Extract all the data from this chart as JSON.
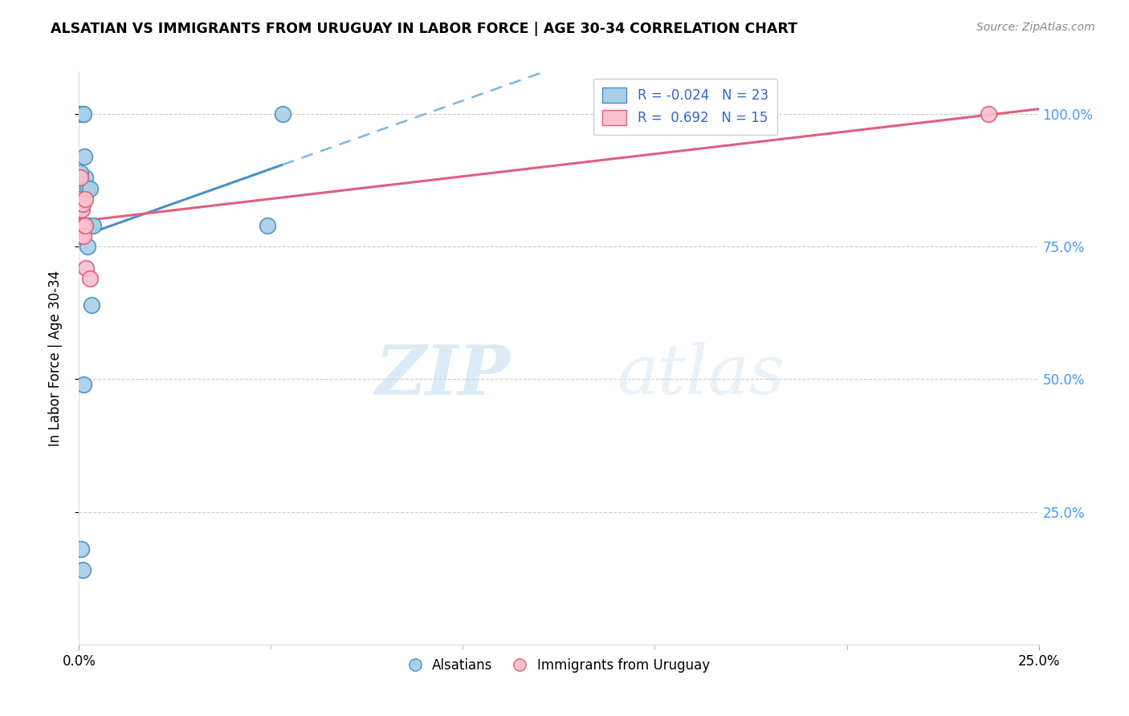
{
  "title": "ALSATIAN VS IMMIGRANTS FROM URUGUAY IN LABOR FORCE | AGE 30-34 CORRELATION CHART",
  "source": "Source: ZipAtlas.com",
  "ylabel": "In Labor Force | Age 30-34",
  "xlim": [
    0.0,
    0.25
  ],
  "ylim": [
    0.0,
    1.08
  ],
  "alsatians_x": [
    0.0002,
    0.001,
    0.0011,
    0.0014,
    0.0016,
    0.0003,
    0.0003,
    0.0004,
    0.0004,
    0.0005,
    0.0006,
    0.0016,
    0.0022,
    0.0022,
    0.0028,
    0.0026,
    0.0032,
    0.0036,
    0.0005,
    0.0009,
    0.0012,
    0.049,
    0.053
  ],
  "alsatians_y": [
    1.0,
    1.0,
    1.0,
    0.92,
    0.88,
    0.89,
    0.87,
    0.86,
    0.84,
    0.82,
    0.77,
    0.86,
    0.86,
    0.75,
    0.86,
    0.79,
    0.64,
    0.79,
    0.18,
    0.14,
    0.49,
    0.79,
    1.0
  ],
  "uruguay_x": [
    0.0003,
    0.0003,
    0.0004,
    0.0004,
    0.0005,
    0.0007,
    0.0008,
    0.001,
    0.0011,
    0.0012,
    0.0015,
    0.0015,
    0.0018,
    0.0028,
    0.237
  ],
  "uruguay_y": [
    0.88,
    0.84,
    0.83,
    0.79,
    0.77,
    0.83,
    0.82,
    0.83,
    0.79,
    0.77,
    0.84,
    0.79,
    0.71,
    0.69,
    1.0
  ],
  "alsatian_R": -0.024,
  "alsatian_N": 23,
  "uruguay_R": 0.692,
  "uruguay_N": 15,
  "alsatian_color": "#a8cfe8",
  "uruguay_color": "#f9c0d0",
  "alsatian_line_color": "#4a90c4",
  "uruguay_line_color": "#e0607a",
  "dashed_line_color": "#7ab8e0",
  "watermark_zip": "ZIP",
  "watermark_atlas": "atlas",
  "grid_color": "#cccccc",
  "right_ytick_positions": [
    1.0,
    0.75,
    0.5,
    0.25
  ],
  "right_ytick_strings": [
    "100.0%",
    "75.0%",
    "50.0%",
    "25.0%"
  ],
  "legend_R1": "R = -0.024",
  "legend_N1": "N = 23",
  "legend_R2": "R =  0.692",
  "legend_N2": "N = 15"
}
